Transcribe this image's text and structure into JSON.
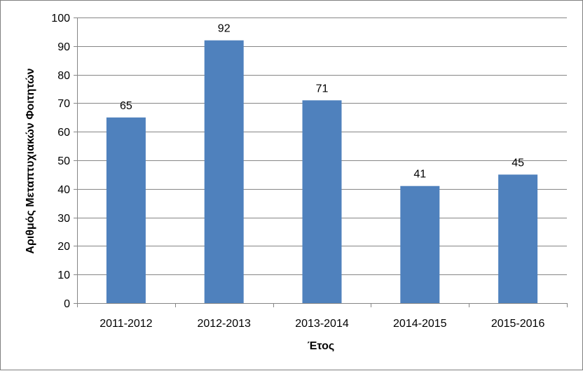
{
  "chart_data": {
    "type": "bar",
    "categories": [
      "2011-2012",
      "2012-2013",
      "2013-2014",
      "2014-2015",
      "2015-2016"
    ],
    "values": [
      65,
      92,
      71,
      41,
      45
    ],
    "data_labels": [
      "65",
      "92",
      "71",
      "41",
      "45"
    ],
    "title": "",
    "xlabel": "Έτος",
    "ylabel": "Αριθμός Μεταπτυχιακών Φοιτητών",
    "ylim": [
      0,
      100
    ],
    "y_ticks": [
      "0",
      "10",
      "20",
      "30",
      "40",
      "50",
      "60",
      "70",
      "80",
      "90",
      "100"
    ],
    "grid": true,
    "legend": "none",
    "bar_color": "#4F81BD",
    "grid_color": "#868686"
  }
}
